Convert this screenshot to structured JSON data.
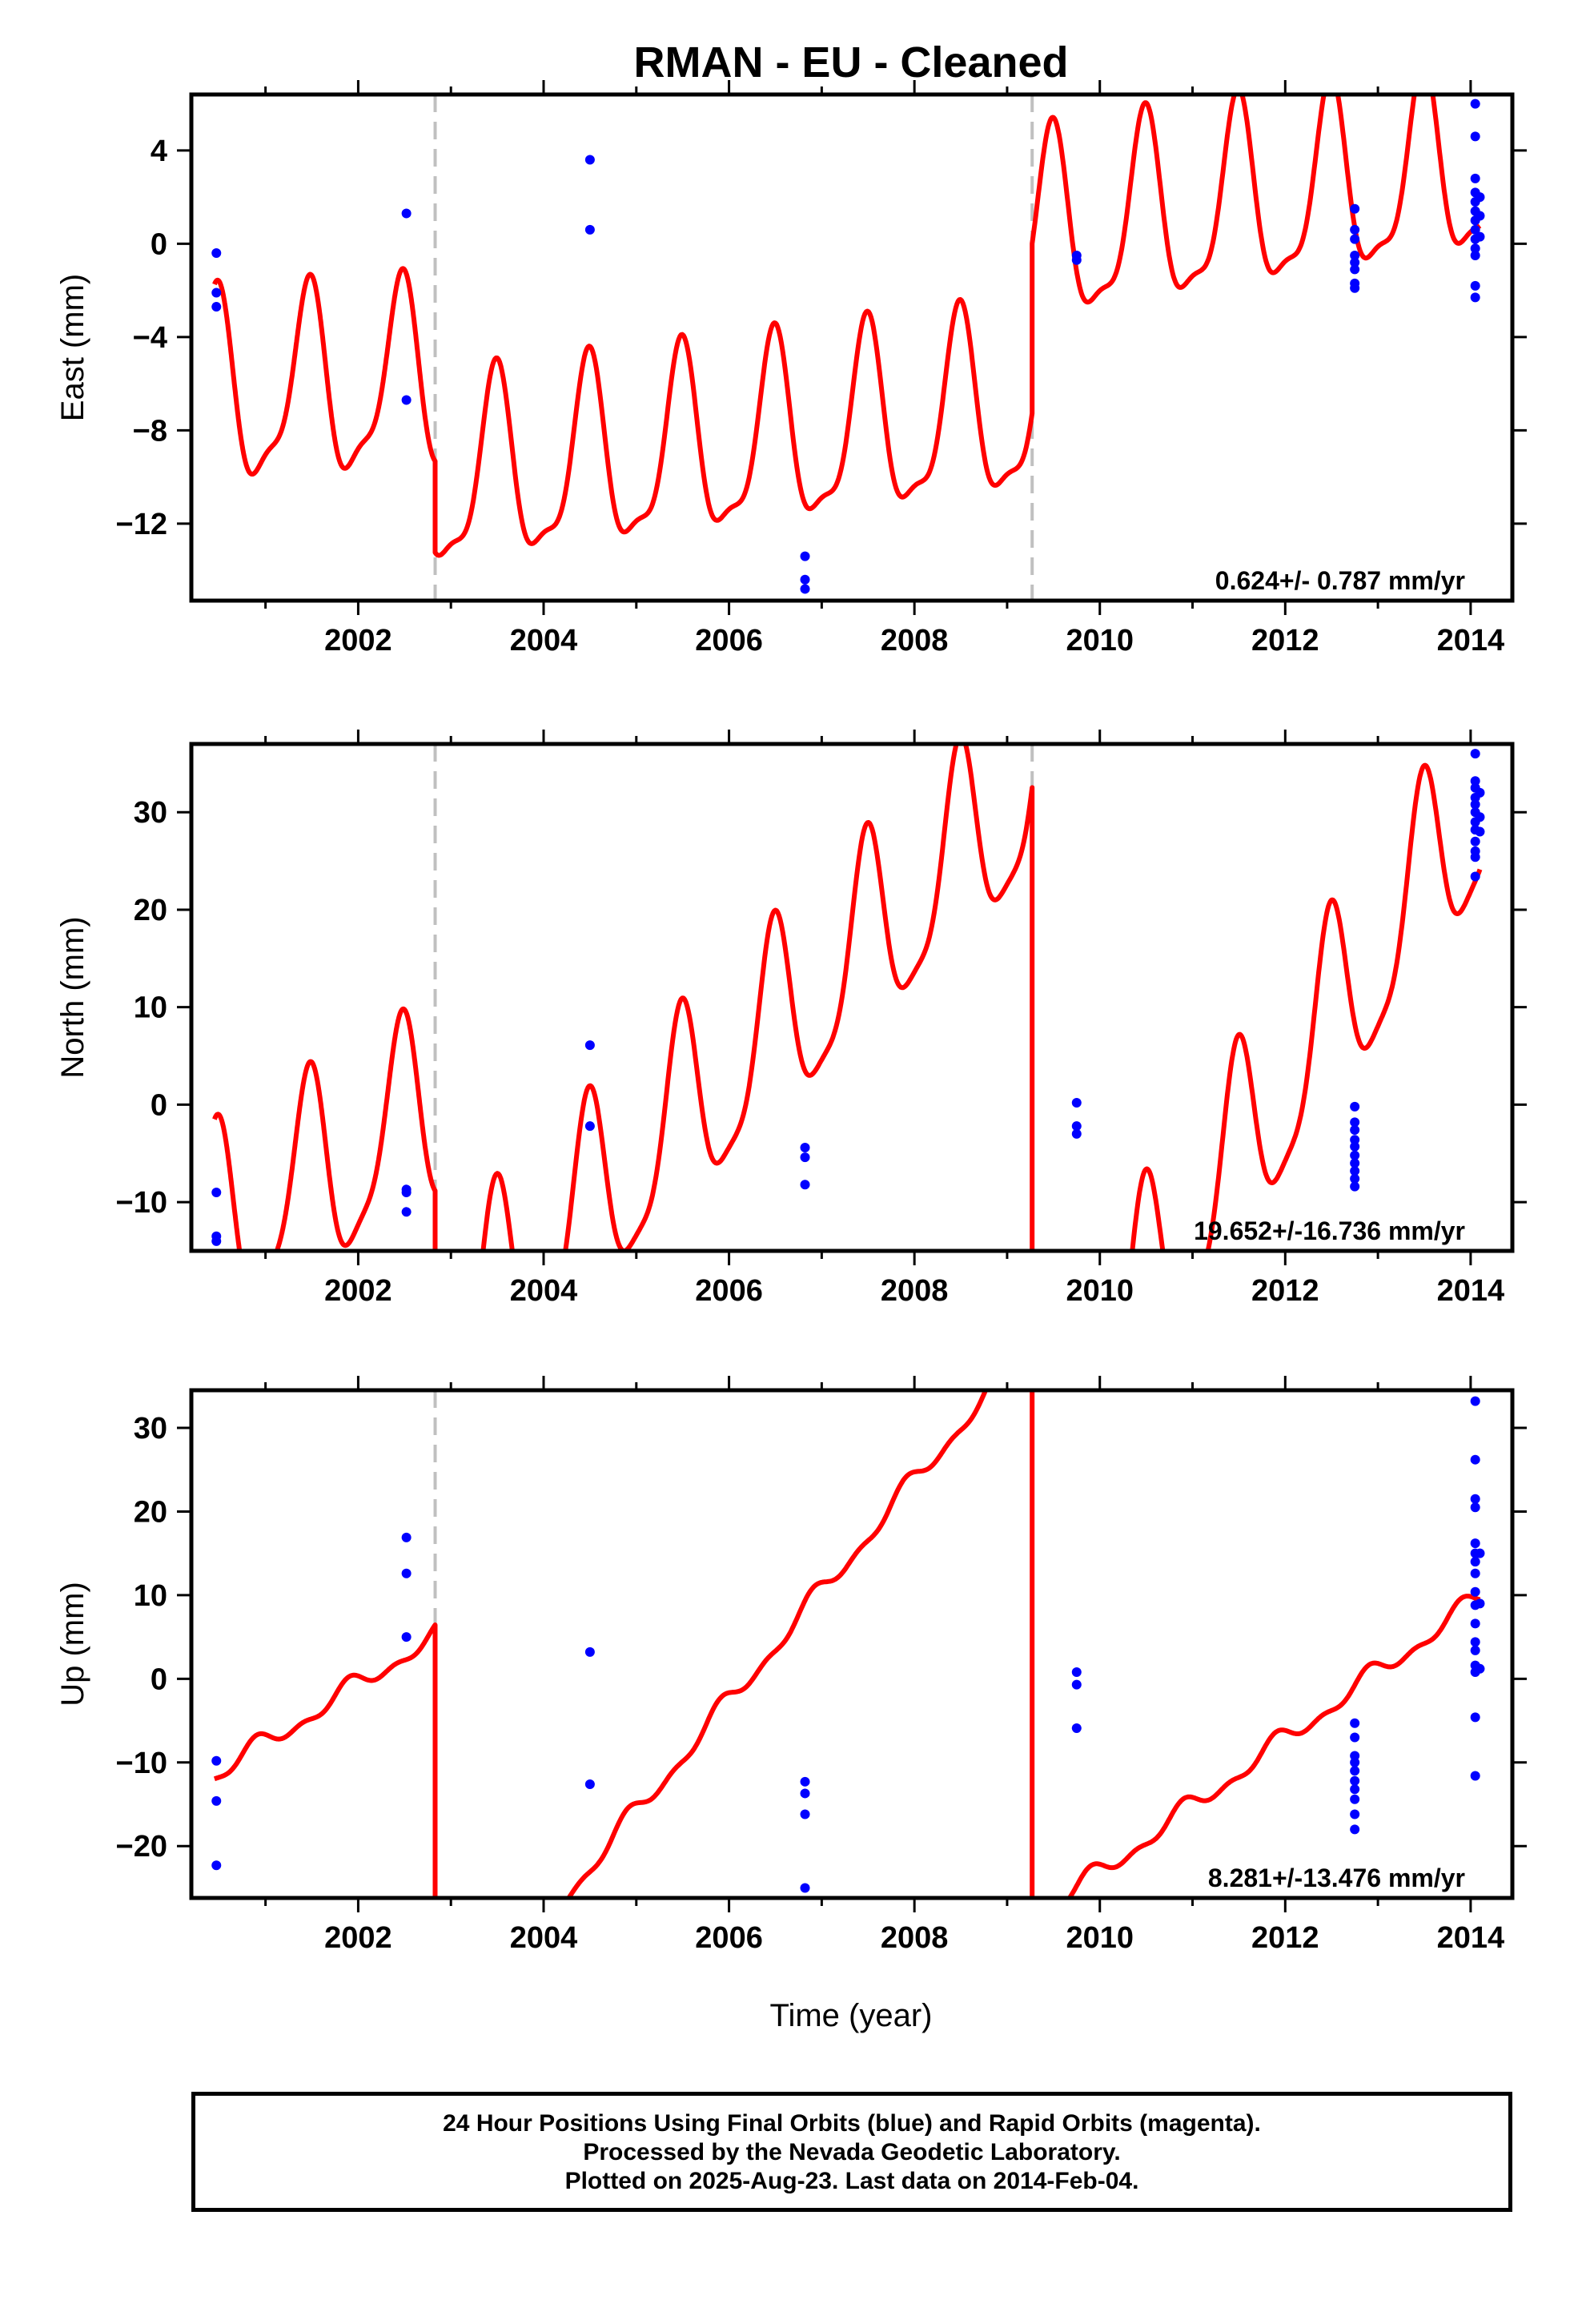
{
  "title": "RMAN  - EU - Cleaned",
  "xlabel": "Time (year)",
  "footer": {
    "line1": "24 Hour Positions Using Final Orbits (blue) and Rapid Orbits (magenta).",
    "line2": "Processed by the Nevada Geodetic Laboratory.",
    "line3": "Plotted on 2025-Aug-23. Last data on 2014-Feb-04."
  },
  "colors": {
    "model": "#ff0000",
    "final_orbits": "#0000ff",
    "break_line": "#c0c0c0",
    "axis": "#000000"
  },
  "chart_data": [
    {
      "type": "scatter",
      "component": "east",
      "ylabel": "East (mm)",
      "xlim": [
        2000.2,
        2014.45
      ],
      "ylim": [
        -15.3,
        6.4
      ],
      "xticks": [
        2002,
        2004,
        2006,
        2008,
        2010,
        2012,
        2014
      ],
      "yticks": [
        -12,
        -8,
        -4,
        0,
        4
      ],
      "ytick_labels": [
        "−12",
        "−8",
        "−4",
        "0",
        "4"
      ],
      "breaks": [
        2002.83,
        2009.27
      ],
      "break_style": "dashed",
      "rate_label": "0.624+/- 0.787 mm/yr",
      "model": {
        "segments": [
          {
            "x0": 2000.45,
            "x1": 2002.83,
            "intercept": -6.6,
            "slope": 0.25,
            "annual_amp": 3.9,
            "annual_phase": 2001.46,
            "semi_amp": 1.2,
            "semi_phase": 2001.5
          },
          {
            "x0": 2002.83,
            "x1": 2009.27,
            "intercept": -10.3,
            "slope": 0.5,
            "annual_amp": 3.9,
            "annual_phase": 2003.48,
            "semi_amp": 1.2,
            "semi_phase": 2003.5
          },
          {
            "x0": 2009.27,
            "x1": 2014.1,
            "intercept": 0.2,
            "slope": 0.63,
            "annual_amp": 3.9,
            "annual_phase": 2009.48,
            "semi_amp": 1.2,
            "semi_phase": 2009.5
          }
        ]
      },
      "points": [
        [
          2000.47,
          -0.4
        ],
        [
          2000.47,
          -2.1
        ],
        [
          2000.47,
          -2.7
        ],
        [
          2002.52,
          1.3
        ],
        [
          2002.52,
          -6.7
        ],
        [
          2004.5,
          3.6
        ],
        [
          2004.5,
          0.6
        ],
        [
          2006.82,
          -13.4
        ],
        [
          2006.82,
          -14.4
        ],
        [
          2006.82,
          -14.8
        ],
        [
          2009.75,
          -0.5
        ],
        [
          2009.75,
          -0.7
        ],
        [
          2012.75,
          1.5
        ],
        [
          2012.75,
          0.6
        ],
        [
          2012.75,
          0.2
        ],
        [
          2012.75,
          -0.5
        ],
        [
          2012.75,
          -0.8
        ],
        [
          2012.75,
          -1.1
        ],
        [
          2012.75,
          -1.7
        ],
        [
          2012.75,
          -1.9
        ],
        [
          2014.05,
          6.0
        ],
        [
          2014.05,
          4.6
        ],
        [
          2014.05,
          2.8
        ],
        [
          2014.05,
          2.2
        ],
        [
          2014.05,
          1.8
        ],
        [
          2014.05,
          1.4
        ],
        [
          2014.05,
          1.0
        ],
        [
          2014.05,
          0.6
        ],
        [
          2014.05,
          0.2
        ],
        [
          2014.05,
          -0.2
        ],
        [
          2014.05,
          -0.5
        ],
        [
          2014.05,
          -1.8
        ],
        [
          2014.05,
          -2.3
        ],
        [
          2014.1,
          2.0
        ],
        [
          2014.1,
          1.2
        ],
        [
          2014.1,
          0.3
        ]
      ]
    },
    {
      "type": "scatter",
      "component": "north",
      "ylabel": "North (mm)",
      "xlim": [
        2000.2,
        2014.45
      ],
      "ylim": [
        -15,
        37
      ],
      "xticks": [
        2002,
        2004,
        2006,
        2008,
        2010,
        2012,
        2014
      ],
      "yticks": [
        -10,
        0,
        10,
        20,
        30
      ],
      "ytick_labels": [
        "−10",
        "0",
        "10",
        "20",
        "30"
      ],
      "breaks": [
        2002.83,
        2009.27
      ],
      "break_style": "dashed",
      "rate_label": "19.652+/-16.736 mm/yr",
      "model": {
        "segments": [
          {
            "x0": 2000.45,
            "x1": 2002.83,
            "intercept": -13.5,
            "slope": 5.4,
            "annual_amp": 10.0,
            "annual_phase": 2001.46,
            "semi_amp": 2.5,
            "semi_phase": 2001.5
          },
          {
            "x0": 2002.83,
            "x1": 2009.27,
            "intercept": -25.5,
            "slope": 9.0,
            "annual_amp": 10.0,
            "annual_phase": 2003.48,
            "semi_amp": 2.5,
            "semi_phase": 2003.5
          },
          {
            "x0": 2009.27,
            "x1": 2014.1,
            "intercept": -36.0,
            "slope": 13.8,
            "annual_amp": 10.0,
            "annual_phase": 2009.48,
            "semi_amp": 2.5,
            "semi_phase": 2009.5
          }
        ]
      },
      "points": [
        [
          2000.47,
          -9.0
        ],
        [
          2000.47,
          -13.5
        ],
        [
          2000.47,
          -14.0
        ],
        [
          2002.52,
          -8.7
        ],
        [
          2002.52,
          -9.0
        ],
        [
          2002.52,
          -11.0
        ],
        [
          2004.5,
          6.1
        ],
        [
          2004.5,
          -2.2
        ],
        [
          2006.82,
          -4.4
        ],
        [
          2006.82,
          -5.4
        ],
        [
          2006.82,
          -8.2
        ],
        [
          2009.75,
          0.2
        ],
        [
          2009.75,
          -2.2
        ],
        [
          2009.75,
          -3.0
        ],
        [
          2012.75,
          -0.2
        ],
        [
          2012.75,
          -1.8
        ],
        [
          2012.75,
          -2.6
        ],
        [
          2012.75,
          -3.6
        ],
        [
          2012.75,
          -4.3
        ],
        [
          2012.75,
          -5.2
        ],
        [
          2012.75,
          -6.0
        ],
        [
          2012.75,
          -6.8
        ],
        [
          2012.75,
          -7.6
        ],
        [
          2012.75,
          -8.4
        ],
        [
          2014.05,
          36.0
        ],
        [
          2014.05,
          33.2
        ],
        [
          2014.05,
          32.5
        ],
        [
          2014.05,
          31.5
        ],
        [
          2014.05,
          30.8
        ],
        [
          2014.05,
          30.0
        ],
        [
          2014.05,
          29.0
        ],
        [
          2014.05,
          28.2
        ],
        [
          2014.05,
          27.0
        ],
        [
          2014.05,
          26.0
        ],
        [
          2014.05,
          25.4
        ],
        [
          2014.05,
          23.4
        ],
        [
          2014.1,
          32.0
        ],
        [
          2014.1,
          29.5
        ],
        [
          2014.1,
          28.0
        ]
      ]
    },
    {
      "type": "scatter",
      "component": "up",
      "ylabel": "Up (mm)",
      "xlim": [
        2000.2,
        2014.45
      ],
      "ylim": [
        -26.2,
        34.5
      ],
      "xticks": [
        2002,
        2004,
        2006,
        2008,
        2010,
        2012,
        2014
      ],
      "yticks": [
        -20,
        -10,
        0,
        10,
        20,
        30
      ],
      "ytick_labels": [
        "−20",
        "−10",
        "0",
        "10",
        "20",
        "30"
      ],
      "breaks": [
        2002.83,
        2009.27
      ],
      "break_style": "dashed",
      "rate_label": "8.281+/-13.476 mm/yr",
      "model": {
        "segments": [
          {
            "x0": 2000.45,
            "x1": 2002.83,
            "intercept": -11.5,
            "slope": 7.0,
            "annual_amp": 1.0,
            "annual_phase": 2000.9,
            "semi_amp": 0.6,
            "semi_phase": 2000.9
          },
          {
            "x0": 2002.83,
            "x1": 2009.27,
            "intercept": -44.5,
            "slope": 13.2,
            "annual_amp": 1.0,
            "annual_phase": 2002.9,
            "semi_amp": 0.6,
            "semi_phase": 2002.9
          },
          {
            "x0": 2009.27,
            "x1": 2014.1,
            "intercept": -29.0,
            "slope": 8.0,
            "annual_amp": 1.0,
            "annual_phase": 2008.9,
            "semi_amp": 0.6,
            "semi_phase": 2008.9
          }
        ]
      },
      "points": [
        [
          2000.47,
          -9.8
        ],
        [
          2000.47,
          -14.6
        ],
        [
          2000.47,
          -22.3
        ],
        [
          2002.52,
          16.9
        ],
        [
          2002.52,
          12.6
        ],
        [
          2002.52,
          5.0
        ],
        [
          2004.5,
          3.2
        ],
        [
          2004.5,
          -12.6
        ],
        [
          2006.82,
          -12.3
        ],
        [
          2006.82,
          -13.7
        ],
        [
          2006.82,
          -16.2
        ],
        [
          2006.82,
          -25.0
        ],
        [
          2009.75,
          0.8
        ],
        [
          2009.75,
          -0.7
        ],
        [
          2009.75,
          -5.9
        ],
        [
          2012.75,
          -5.3
        ],
        [
          2012.75,
          -7.0
        ],
        [
          2012.75,
          -9.2
        ],
        [
          2012.75,
          -10.0
        ],
        [
          2012.75,
          -11.0
        ],
        [
          2012.75,
          -12.2
        ],
        [
          2012.75,
          -13.2
        ],
        [
          2012.75,
          -14.4
        ],
        [
          2012.75,
          -16.2
        ],
        [
          2012.75,
          -18.0
        ],
        [
          2014.05,
          33.2
        ],
        [
          2014.05,
          26.2
        ],
        [
          2014.05,
          21.5
        ],
        [
          2014.05,
          20.5
        ],
        [
          2014.05,
          16.2
        ],
        [
          2014.05,
          15.0
        ],
        [
          2014.05,
          14.0
        ],
        [
          2014.05,
          12.6
        ],
        [
          2014.05,
          10.4
        ],
        [
          2014.05,
          8.8
        ],
        [
          2014.05,
          6.6
        ],
        [
          2014.05,
          4.4
        ],
        [
          2014.05,
          3.4
        ],
        [
          2014.05,
          1.6
        ],
        [
          2014.05,
          0.8
        ],
        [
          2014.05,
          -4.6
        ],
        [
          2014.05,
          -11.6
        ],
        [
          2014.1,
          15.0
        ],
        [
          2014.1,
          9.0
        ],
        [
          2014.1,
          1.2
        ]
      ]
    }
  ]
}
